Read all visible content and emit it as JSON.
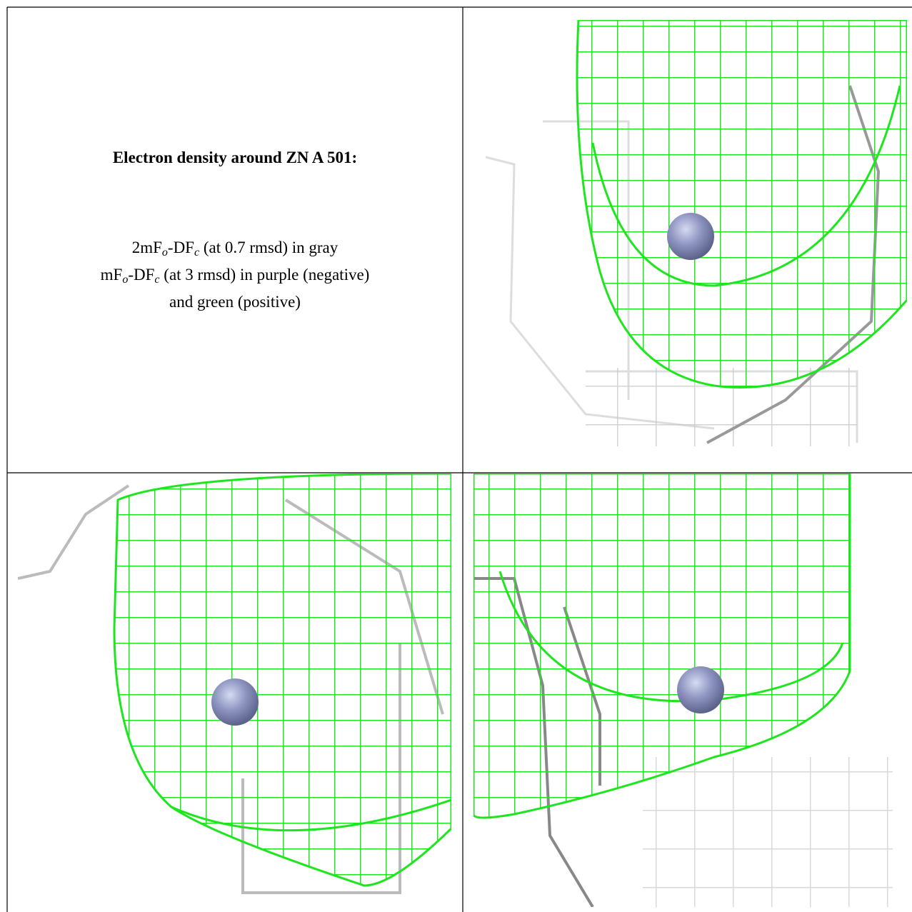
{
  "caption": {
    "title": "Electron density around ZN A 501:",
    "line1": [
      "2mF",
      "o",
      "-DF",
      "c",
      " (at 0.7 rmsd) in gray"
    ],
    "line2": [
      "mF",
      "o",
      "-DF",
      "c",
      " (at 3 rmsd) in purple (negative)"
    ],
    "line3": "and green (positive)"
  }
}
